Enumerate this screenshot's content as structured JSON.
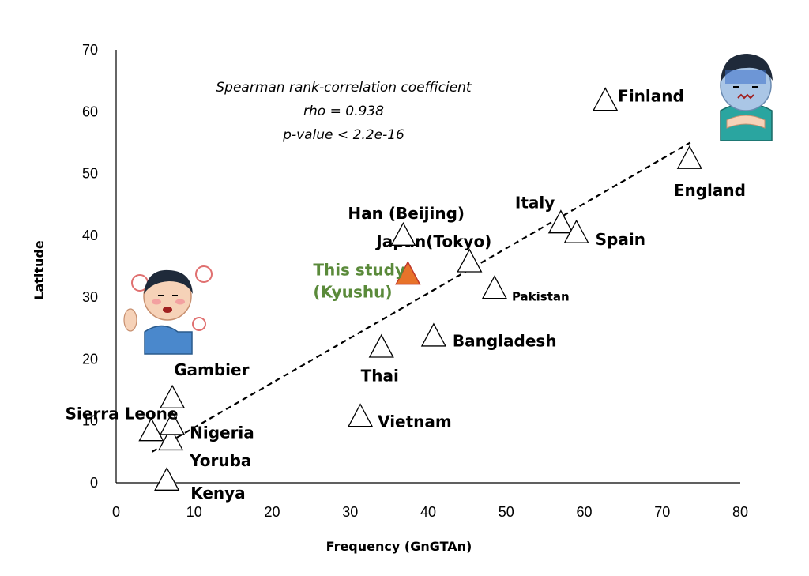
{
  "chart_data": {
    "type": "scatter",
    "xlabel": "Frequency (GnGTAn)",
    "ylabel": "Latitude",
    "xlim": [
      0,
      80
    ],
    "ylim": [
      0,
      70
    ],
    "x_ticks": [
      "0",
      "10",
      "20",
      "30",
      "40",
      "50",
      "60",
      "70",
      "80"
    ],
    "y_ticks": [
      "0",
      "10",
      "20",
      "30",
      "40",
      "50",
      "60",
      "70"
    ],
    "grid": false,
    "legend": "none",
    "marker": "open-triangle",
    "highlight_color": "#e8732a",
    "highlight_stroke": "#c0392b",
    "study_label_color": "#5a8a3a",
    "points": [
      {
        "label": "Kenya",
        "x": 6.5,
        "y": 0
      },
      {
        "label": "Yoruba",
        "x": 7,
        "y": 6.5
      },
      {
        "label": "Nigeria",
        "x": 7.2,
        "y": 9
      },
      {
        "label": "Sierra Leone",
        "x": 4.5,
        "y": 8
      },
      {
        "label": "Gambier",
        "x": 7.2,
        "y": 13.3
      },
      {
        "label": "Vietnam",
        "x": 31.3,
        "y": 10.3
      },
      {
        "label": "Thai",
        "x": 34,
        "y": 21.5
      },
      {
        "label": "Bangladesh",
        "x": 40.7,
        "y": 23.3
      },
      {
        "label": "Pakistan",
        "x": 48.5,
        "y": 31
      },
      {
        "label": "Japan(Tokyo)",
        "x": 45.3,
        "y": 35.3
      },
      {
        "label": "Han (Beijing)",
        "x": 36.8,
        "y": 39.6
      },
      {
        "label": "Italy",
        "x": 57,
        "y": 41.6
      },
      {
        "label": "Spain",
        "x": 59,
        "y": 40
      },
      {
        "label": "England",
        "x": 73.5,
        "y": 52
      },
      {
        "label": "Finland",
        "x": 62.7,
        "y": 61.4
      }
    ],
    "study_point": {
      "label_line1": "This study",
      "label_line2": "(Kyushu)",
      "x": 37.4,
      "y": 33.3
    },
    "trendline": {
      "style": "dashed",
      "x": [
        4.6,
        73.6
      ],
      "y": [
        5,
        55
      ]
    },
    "annotation": {
      "line1": "Spearman rank-correlation coefficient",
      "line2": "rho = 0.938",
      "line3": "p-value < 2.2e-16"
    }
  }
}
